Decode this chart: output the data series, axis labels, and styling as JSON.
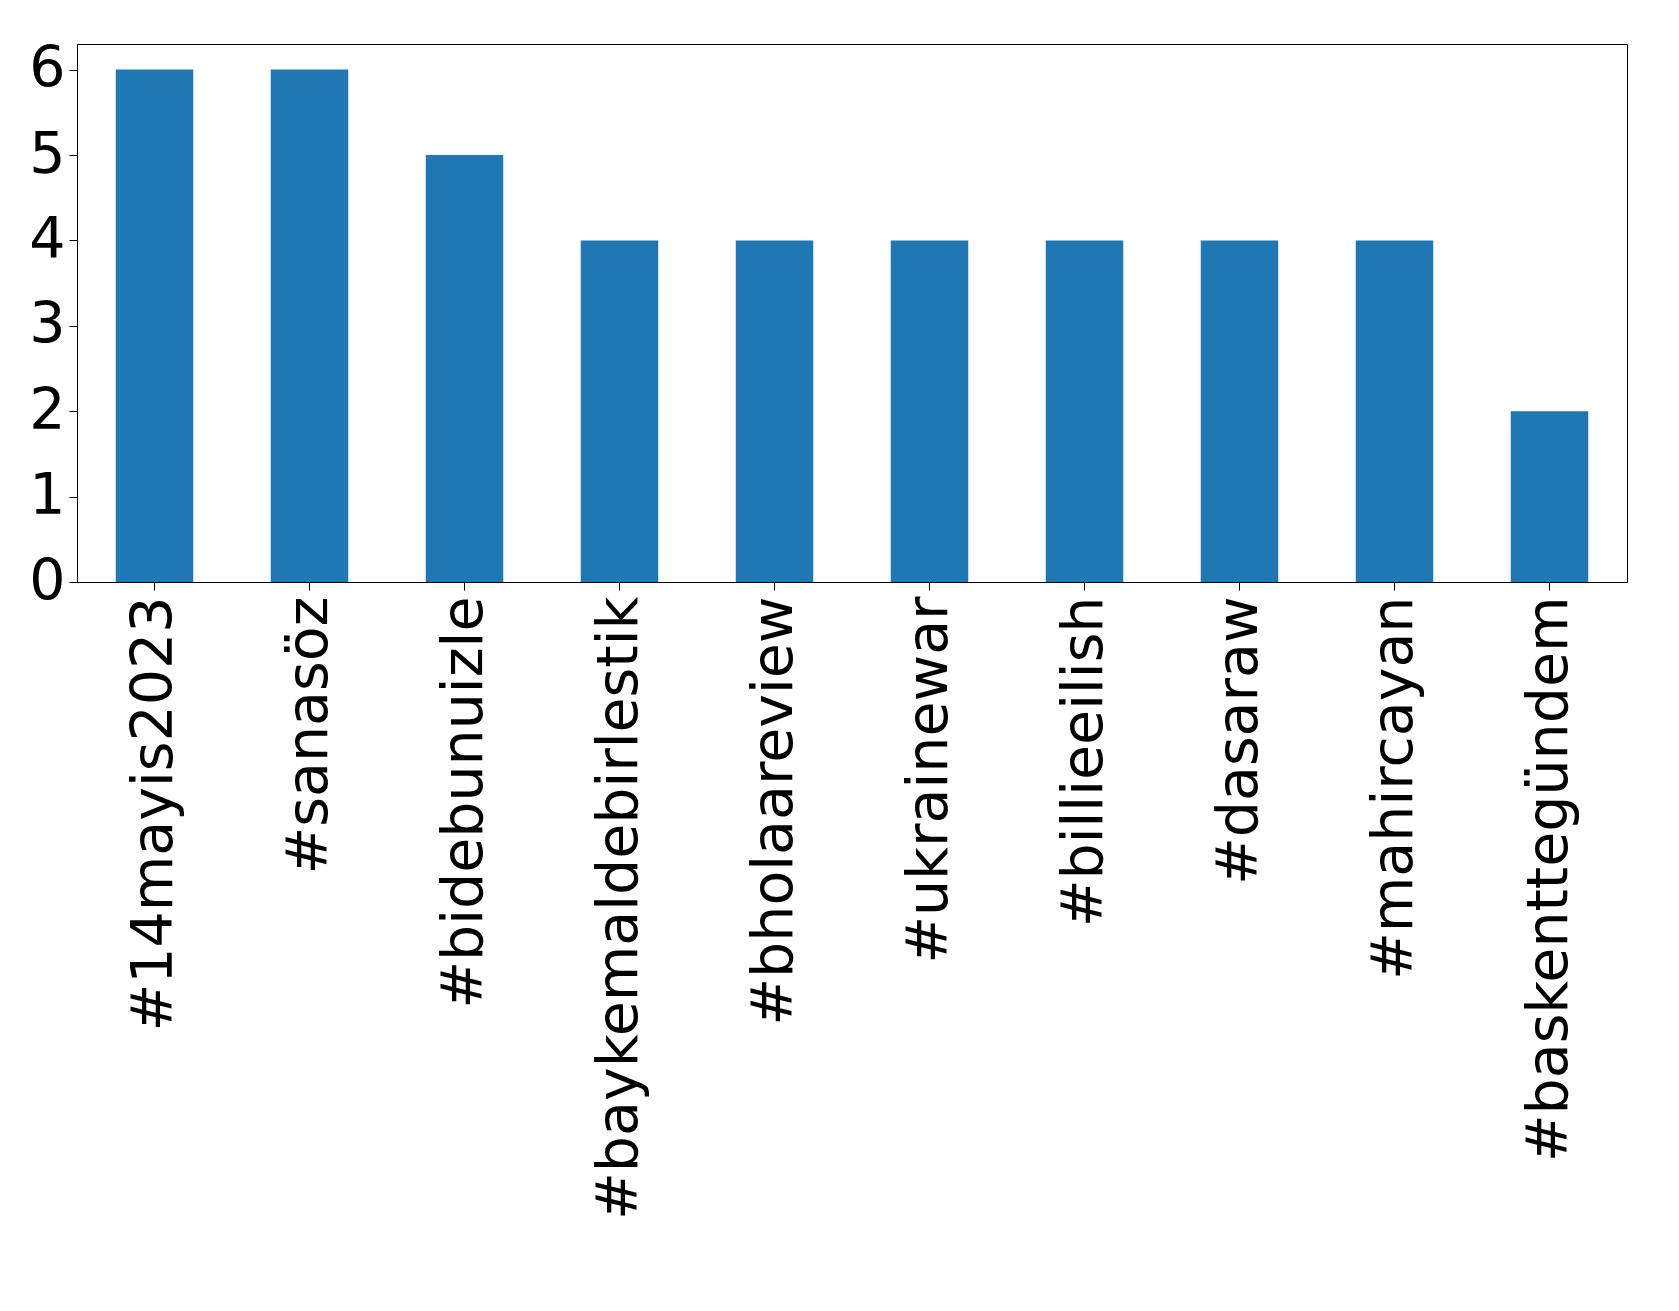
{
  "chart_data": {
    "type": "bar",
    "categories": [
      "#14mayis2023",
      "#sanasöz",
      "#bidebunuizle",
      "#baykemaldebirlestik",
      "#bholaareview",
      "#ukrainewar",
      "#billieeilish",
      "#dasaraw",
      "#mahircayan",
      "#baskenttegündem"
    ],
    "values": [
      6,
      6,
      5,
      4,
      4,
      4,
      4,
      4,
      4,
      2
    ],
    "color": "#1f77b4",
    "ylim": [
      0,
      6.3
    ],
    "yticks": [
      0,
      1,
      2,
      3,
      4,
      5,
      6
    ],
    "grid": false
  }
}
